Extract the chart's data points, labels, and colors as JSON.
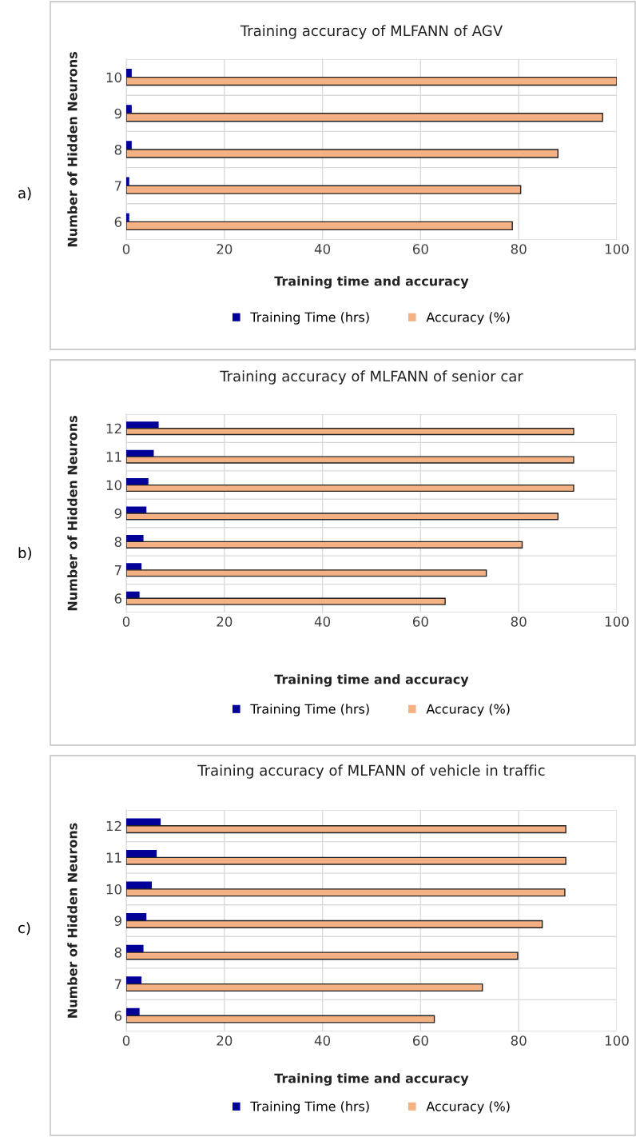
{
  "chart_data": [
    {
      "type": "bar",
      "orientation": "horizontal",
      "title": "Training accuracy of MLFANN of AGV",
      "xlabel": "Training time and accuracy",
      "ylabel": "Number of Hidden Neurons",
      "annotations": [
        "a)"
      ],
      "categories": [
        "10",
        "9",
        "8",
        "7",
        "6"
      ],
      "series": [
        {
          "name": "Training Time (hrs)",
          "color": "#000099",
          "values": [
            1.0,
            1.0,
            1.0,
            0.5,
            0.5
          ]
        },
        {
          "name": "Accuracy (%)",
          "color": "#f4b183",
          "values": [
            100,
            97.1,
            88,
            80.4,
            78.7
          ]
        }
      ],
      "xlim": [
        0,
        100
      ],
      "xticks": [
        0,
        20,
        40,
        60,
        80,
        100
      ],
      "grid": true,
      "legend": "bottom"
    },
    {
      "type": "bar",
      "orientation": "horizontal",
      "title": "Training accuracy of MLFANN of senior car",
      "xlabel": "Training time and accuracy",
      "ylabel": "Number of Hidden Neurons",
      "annotations": [
        "b)"
      ],
      "categories": [
        "12",
        "11",
        "10",
        "9",
        "8",
        "7",
        "6"
      ],
      "series": [
        {
          "name": "Training Time (hrs)",
          "color": "#000099",
          "values": [
            6.5,
            5.5,
            4.4,
            4.0,
            3.4,
            3.0,
            2.6
          ]
        },
        {
          "name": "Accuracy (%)",
          "color": "#f4b183",
          "values": [
            91.2,
            91.2,
            91.2,
            88,
            80.7,
            73.4,
            65
          ]
        }
      ],
      "xlim": [
        0,
        100
      ],
      "xticks": [
        0,
        20,
        40,
        60,
        80,
        100
      ],
      "grid": true,
      "legend": "bottom"
    },
    {
      "type": "bar",
      "orientation": "horizontal",
      "title": "Training accuracy of MLFANN of vehicle in traffic",
      "xlabel": "Training time and accuracy",
      "ylabel": "Number of Hidden Neurons",
      "annotations": [
        "c)"
      ],
      "categories": [
        "12",
        "11",
        "10",
        "9",
        "8",
        "7",
        "6"
      ],
      "series": [
        {
          "name": "Training Time (hrs)",
          "color": "#000099",
          "values": [
            6.9,
            6.1,
            5.1,
            4.0,
            3.4,
            3.0,
            2.6
          ]
        },
        {
          "name": "Accuracy (%)",
          "color": "#f4b183",
          "values": [
            89.6,
            89.6,
            89.4,
            84.8,
            79.8,
            72.6,
            62.8
          ]
        }
      ],
      "xlim": [
        0,
        100
      ],
      "xticks": [
        0,
        20,
        40,
        60,
        80,
        100
      ],
      "grid": true,
      "legend": "bottom"
    }
  ]
}
